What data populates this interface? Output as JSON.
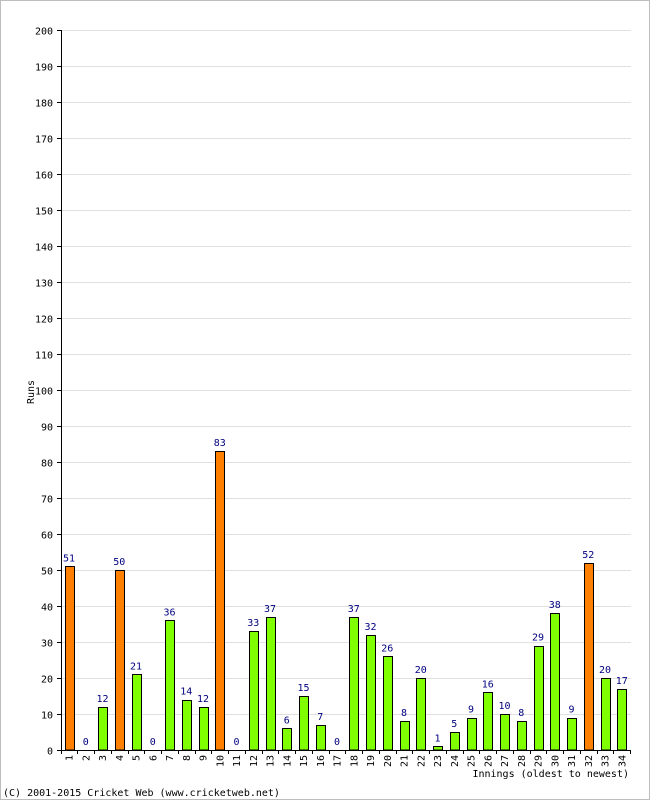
{
  "chart_data": {
    "type": "bar",
    "xlabel": "Innings (oldest to newest)",
    "ylabel": "Runs",
    "ylim": [
      0,
      200
    ],
    "ytick_step": 10,
    "grid": true,
    "categories": [
      "1",
      "2",
      "3",
      "4",
      "5",
      "6",
      "7",
      "8",
      "9",
      "10",
      "11",
      "12",
      "13",
      "14",
      "15",
      "16",
      "17",
      "18",
      "19",
      "20",
      "21",
      "22",
      "23",
      "24",
      "25",
      "26",
      "27",
      "28",
      "29",
      "30",
      "31",
      "32",
      "33",
      "34"
    ],
    "values": [
      51,
      0,
      12,
      50,
      21,
      0,
      36,
      14,
      12,
      83,
      0,
      33,
      37,
      6,
      15,
      7,
      0,
      37,
      32,
      26,
      8,
      20,
      1,
      5,
      9,
      16,
      10,
      8,
      29,
      38,
      9,
      52,
      20,
      17
    ],
    "highlight_threshold": 50,
    "colors": {
      "bar_normal": "#80ff00",
      "bar_highlight": "#ff8000",
      "value_label": "#000080",
      "grid": "#e0e0e0",
      "frame": "#bdbdbd"
    }
  },
  "footer": {
    "copyright": "(C) 2001-2015 Cricket Web (www.cricketweb.net)"
  }
}
